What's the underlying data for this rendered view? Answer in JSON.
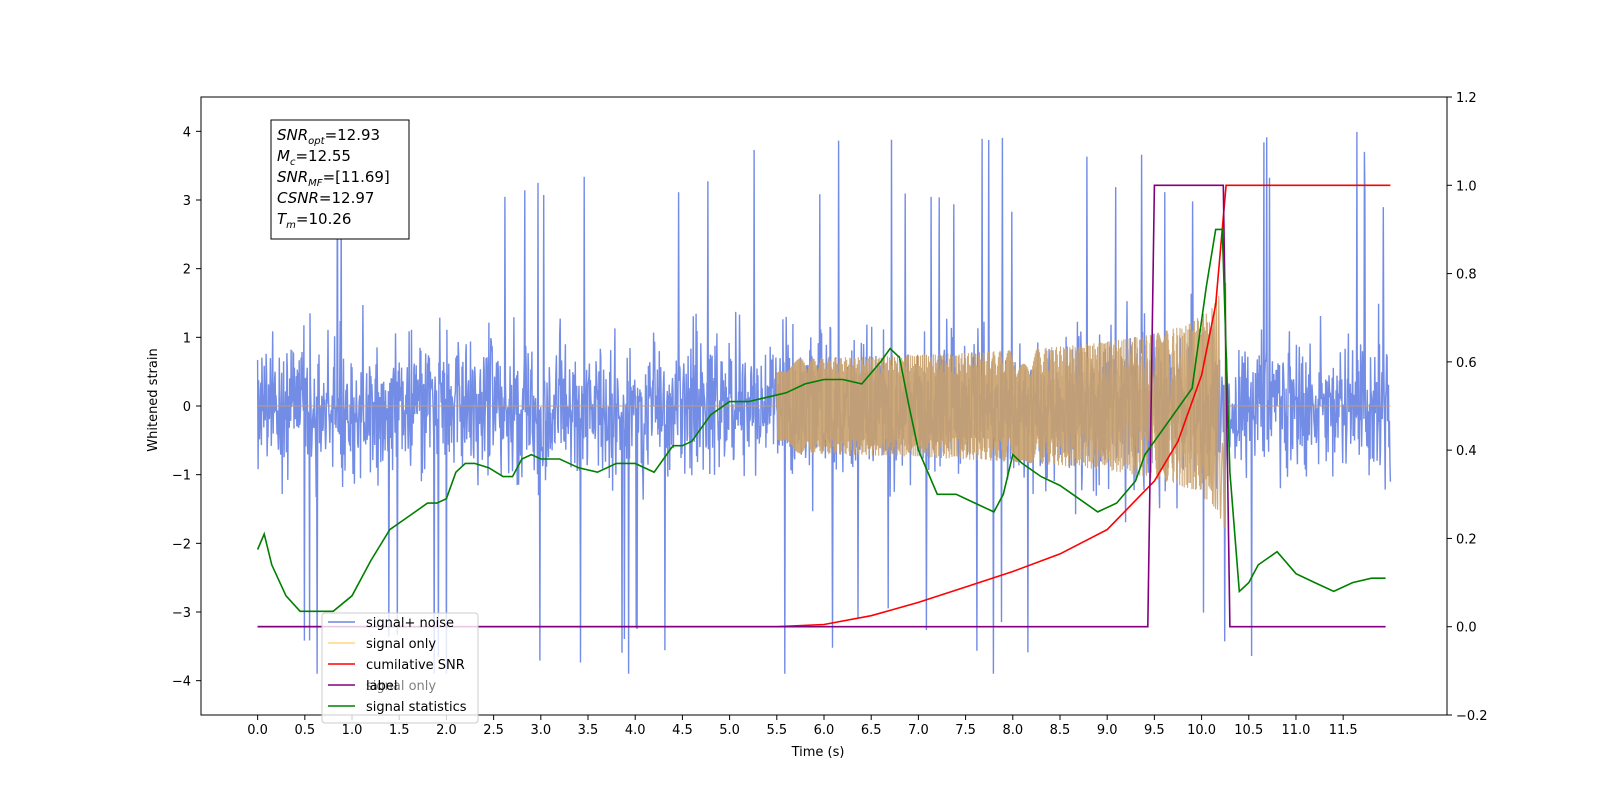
{
  "chart_data": {
    "type": "line",
    "xlabel": "Time (s)",
    "ylabel_left": "Whitened strain",
    "ylabel_right": "",
    "xlim": [
      -0.6,
      12.6
    ],
    "ylim_left": [
      -4.5,
      4.5
    ],
    "ylim_right": [
      -0.2,
      1.2
    ],
    "xticks": [
      "0.0",
      "0.5",
      "1.0",
      "1.5",
      "2.0",
      "2.5",
      "3.0",
      "3.5",
      "4.0",
      "4.5",
      "5.0",
      "5.5",
      "6.0",
      "6.5",
      "7.0",
      "7.5",
      "8.0",
      "8.5",
      "9.0",
      "9.5",
      "10.0",
      "10.5",
      "11.0",
      "11.5"
    ],
    "yticks_left": [
      "4",
      "3",
      "2",
      "1",
      "0",
      "−1",
      "−2",
      "−3",
      "−4"
    ],
    "yticks_right": [
      "1.2",
      "1.0",
      "0.8",
      "0.6",
      "0.4",
      "0.2",
      "0.0",
      "−0.2"
    ],
    "grid": false,
    "legend_position": "lower-left",
    "info_box": {
      "lines": [
        {
          "base": "SNR",
          "sub": "opt",
          "rest": "=12.93"
        },
        {
          "base": "M",
          "sub": "c",
          "rest": "=12.55"
        },
        {
          "base": "SNR",
          "sub": "MF",
          "rest": "=[11.69]"
        },
        {
          "base": "CSNR",
          "sub": "",
          "rest": "=12.97"
        },
        {
          "base": "T",
          "sub": "m",
          "rest": "=10.26"
        }
      ]
    },
    "series": [
      {
        "name": "signal+ noise",
        "axis": "left",
        "color": "#6b86e4",
        "noise_amplitude": 1.7,
        "x_range": [
          0.0,
          12.0
        ]
      },
      {
        "name": "signal only",
        "axis": "left",
        "color": "#f5b453",
        "merger_time": 10.26,
        "peak_amplitude": 1.9,
        "x_range": [
          0.0,
          12.0
        ]
      },
      {
        "name": "cumilative SNR",
        "axis": "right",
        "color": "#ff0000",
        "x": [
          0.0,
          5.5,
          6.0,
          6.5,
          7.0,
          7.5,
          8.0,
          8.5,
          9.0,
          9.5,
          9.75,
          10.0,
          10.15,
          10.26,
          12.0
        ],
        "y": [
          0.0,
          0.0,
          0.005,
          0.025,
          0.055,
          0.09,
          0.125,
          0.165,
          0.22,
          0.33,
          0.42,
          0.57,
          0.73,
          1.0,
          1.0
        ]
      },
      {
        "name": "label",
        "axis": "right",
        "color": "#800080",
        "x": [
          0.0,
          9.43,
          9.5,
          10.23,
          10.3,
          11.95
        ],
        "y": [
          0.0,
          0.0,
          1.0,
          1.0,
          0.0,
          0.0
        ]
      },
      {
        "name": "signal statistics",
        "axis": "right",
        "color": "#008000",
        "x": [
          0.0,
          0.07,
          0.15,
          0.3,
          0.45,
          0.6,
          0.8,
          1.0,
          1.2,
          1.4,
          1.6,
          1.8,
          1.9,
          2.0,
          2.1,
          2.2,
          2.3,
          2.45,
          2.6,
          2.7,
          2.8,
          2.9,
          3.0,
          3.2,
          3.4,
          3.6,
          3.8,
          3.9,
          4.0,
          4.2,
          4.4,
          4.5,
          4.6,
          4.8,
          5.0,
          5.2,
          5.4,
          5.6,
          5.8,
          6.0,
          6.2,
          6.4,
          6.6,
          6.7,
          6.8,
          6.9,
          7.0,
          7.2,
          7.4,
          7.6,
          7.8,
          7.9,
          8.0,
          8.1,
          8.3,
          8.5,
          8.7,
          8.9,
          9.1,
          9.3,
          9.4,
          9.5,
          9.7,
          9.9,
          10.05,
          10.15,
          10.22,
          10.3,
          10.4,
          10.5,
          10.6,
          10.8,
          11.0,
          11.2,
          11.4,
          11.6,
          11.8,
          11.95
        ],
        "y": [
          0.175,
          0.21,
          0.14,
          0.07,
          0.035,
          0.035,
          0.035,
          0.07,
          0.15,
          0.22,
          0.25,
          0.28,
          0.28,
          0.29,
          0.35,
          0.37,
          0.37,
          0.36,
          0.34,
          0.34,
          0.38,
          0.39,
          0.38,
          0.38,
          0.36,
          0.35,
          0.37,
          0.37,
          0.37,
          0.35,
          0.41,
          0.41,
          0.42,
          0.48,
          0.51,
          0.51,
          0.52,
          0.53,
          0.55,
          0.56,
          0.56,
          0.55,
          0.6,
          0.63,
          0.61,
          0.5,
          0.4,
          0.3,
          0.3,
          0.28,
          0.26,
          0.3,
          0.39,
          0.37,
          0.34,
          0.32,
          0.29,
          0.26,
          0.28,
          0.33,
          0.39,
          0.42,
          0.48,
          0.54,
          0.77,
          0.9,
          0.9,
          0.35,
          0.08,
          0.1,
          0.14,
          0.17,
          0.12,
          0.1,
          0.08,
          0.1,
          0.11,
          0.11
        ]
      },
      {
        "name": "signal only",
        "axis": "left",
        "color": "#ffd580",
        "legend_only": true
      }
    ]
  }
}
